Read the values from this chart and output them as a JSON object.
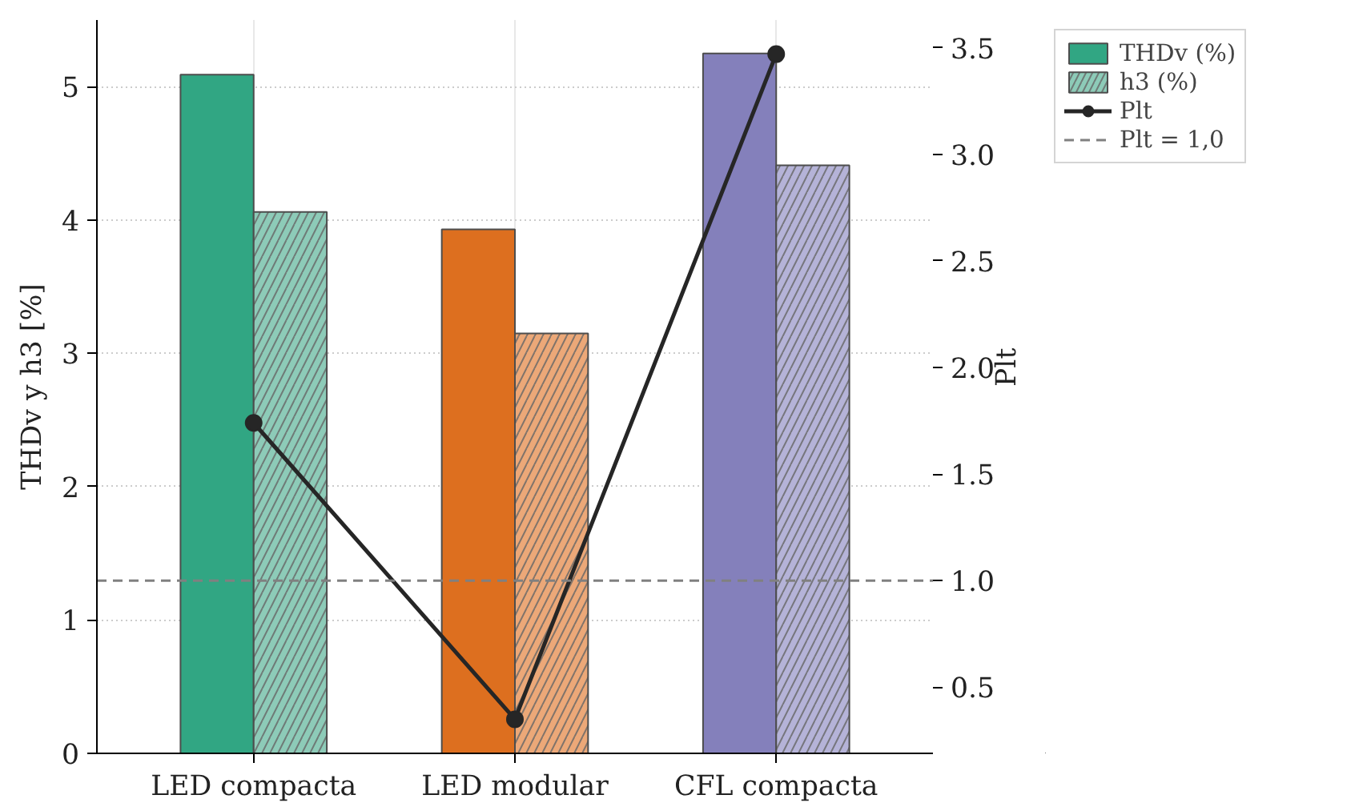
{
  "chart_data": {
    "type": "bar",
    "categories": [
      "LED compacta",
      "LED modular",
      "CFL compacta"
    ],
    "ylabel": "THDv y h3 [%]",
    "y2label": "Plt",
    "ylim": [
      0,
      5.5
    ],
    "yticks": [
      0,
      1,
      2,
      3,
      4,
      5
    ],
    "y2lim": [
      0.19,
      3.63
    ],
    "y2ticks": [
      0.5,
      {
        "value": 1,
        "label": "1.0"
      },
      1.5,
      {
        "value": 2,
        "label": "2.0"
      },
      2.5,
      {
        "value": 3,
        "label": "3.0"
      },
      3.5
    ],
    "series": [
      {
        "name": "THDv (%)",
        "colors": [
          "#31a683",
          "#dd6f1f",
          "#8480bb"
        ],
        "values": [
          5.09,
          3.93,
          5.25
        ]
      },
      {
        "name": "h3 (%)",
        "colors": [
          "#8dcbb8",
          "#eca878",
          "#b5b3d8"
        ],
        "values": [
          4.06,
          3.15,
          4.41
        ]
      },
      {
        "name": "Plt",
        "type": "line",
        "axis": "y2",
        "color": "#262626",
        "marker": "circle",
        "values": [
          1.74,
          0.35,
          3.47
        ]
      }
    ],
    "ref_lines": [
      {
        "axis": "y2",
        "value": 1.0,
        "label": "Plt = 1,0",
        "color": "#808080",
        "line_style": "dashed"
      }
    ],
    "grid": true,
    "legend": "top right"
  }
}
